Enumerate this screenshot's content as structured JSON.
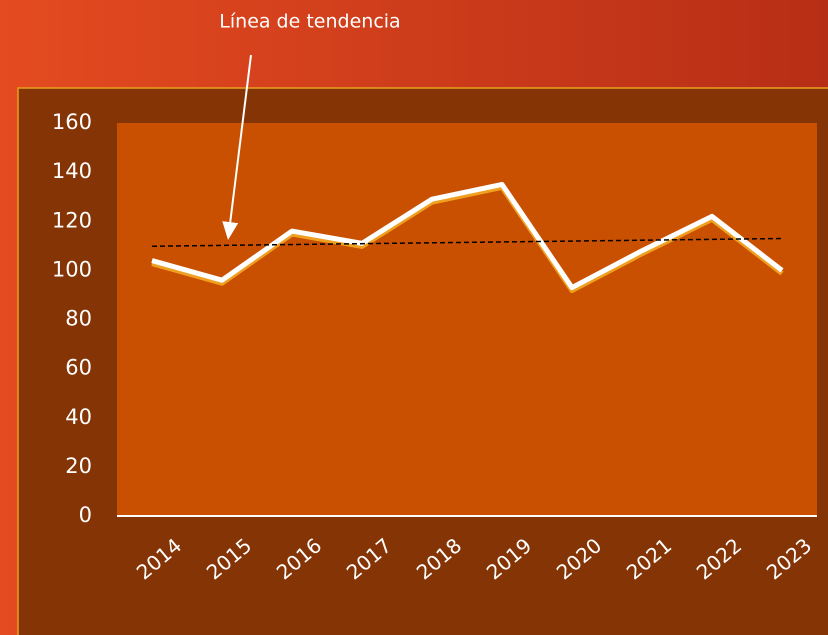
{
  "chart_data": {
    "type": "line",
    "annotation": "Línea de tendencia",
    "categories": [
      "2014",
      "2015",
      "2016",
      "2017",
      "2018",
      "2019",
      "2020",
      "2021",
      "2022",
      "2023"
    ],
    "series": [
      {
        "color": "#ffffff",
        "values": [
          104,
          96,
          116,
          111,
          129,
          135,
          93,
          108,
          122,
          100
        ]
      }
    ],
    "trendline": true,
    "ylim": [
      0,
      160
    ],
    "yticks": [
      0,
      20,
      40,
      60,
      80,
      100,
      120,
      140,
      160
    ],
    "grid": false
  }
}
